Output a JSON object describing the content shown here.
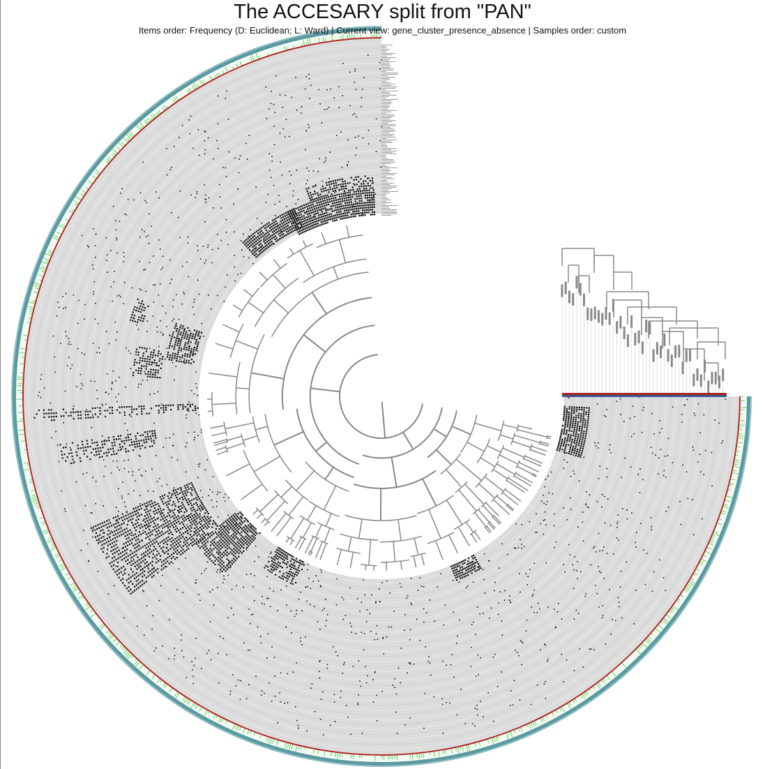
{
  "header": {
    "title": "The ACCESARY split from \"PAN\"",
    "subtitle": "Items order: Frequency (D: Euclidean; L: Ward) | Current view: gene_cluster_presence_absence | Samples order: custom"
  },
  "figure": {
    "view_type": "circular phylogram",
    "colors": {
      "background_ring": "#dcdcdc",
      "presence": "#111111",
      "tree_branches": "#888888",
      "layer_green": "#3cc43c",
      "layer_red": "#b22222",
      "layer_teal": "#5a9aa0",
      "layer_blue": "#3a5a8a"
    }
  }
}
